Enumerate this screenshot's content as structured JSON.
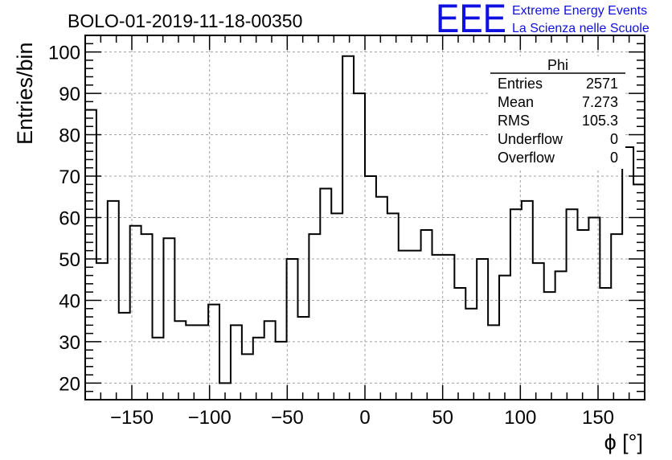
{
  "chart_data": {
    "type": "bar",
    "style": "step-histogram",
    "title": "BOLO-01-2019-11-18-00350",
    "xlabel": "ϕ [°]",
    "ylabel": "Entries/bin",
    "xlim": [
      -180,
      180
    ],
    "ylim": [
      16,
      104
    ],
    "bin_width": 7.2,
    "grid": true,
    "x_ticks": [
      -150,
      -100,
      -50,
      0,
      50,
      100,
      150
    ],
    "x_tick_labels": [
      "−150",
      "−100",
      "−50",
      "0",
      "50",
      "100",
      "150"
    ],
    "y_ticks": [
      20,
      30,
      40,
      50,
      60,
      70,
      80,
      90,
      100
    ],
    "y_tick_labels": [
      "20",
      "30",
      "40",
      "50",
      "60",
      "70",
      "80",
      "90",
      "100"
    ],
    "values": [
      86,
      49,
      64,
      37,
      58,
      56,
      31,
      55,
      35,
      34,
      34,
      39,
      20,
      34,
      27,
      31,
      35,
      30,
      50,
      36,
      56,
      67,
      61,
      99,
      90,
      70,
      65,
      61,
      52,
      52,
      57,
      51,
      51,
      43,
      38,
      50,
      34,
      46,
      62,
      64,
      49,
      42,
      47,
      62,
      57,
      60,
      43,
      56,
      77,
      68
    ],
    "stats": {
      "name": "Phi",
      "rows": [
        {
          "label": "Entries",
          "value": "2571"
        },
        {
          "label": "Mean",
          "value": "7.273"
        },
        {
          "label": "RMS",
          "value": "105.3"
        },
        {
          "label": "Underflow",
          "value": "0"
        },
        {
          "label": "Overflow",
          "value": "0"
        }
      ]
    },
    "logo": {
      "acronym": "EEE",
      "line1": "Extreme Energy Events",
      "line2": "La Scienza nelle Scuole",
      "color": "#1010e0"
    },
    "line_color": "#000000",
    "grid_color": "#a0a0a0"
  }
}
